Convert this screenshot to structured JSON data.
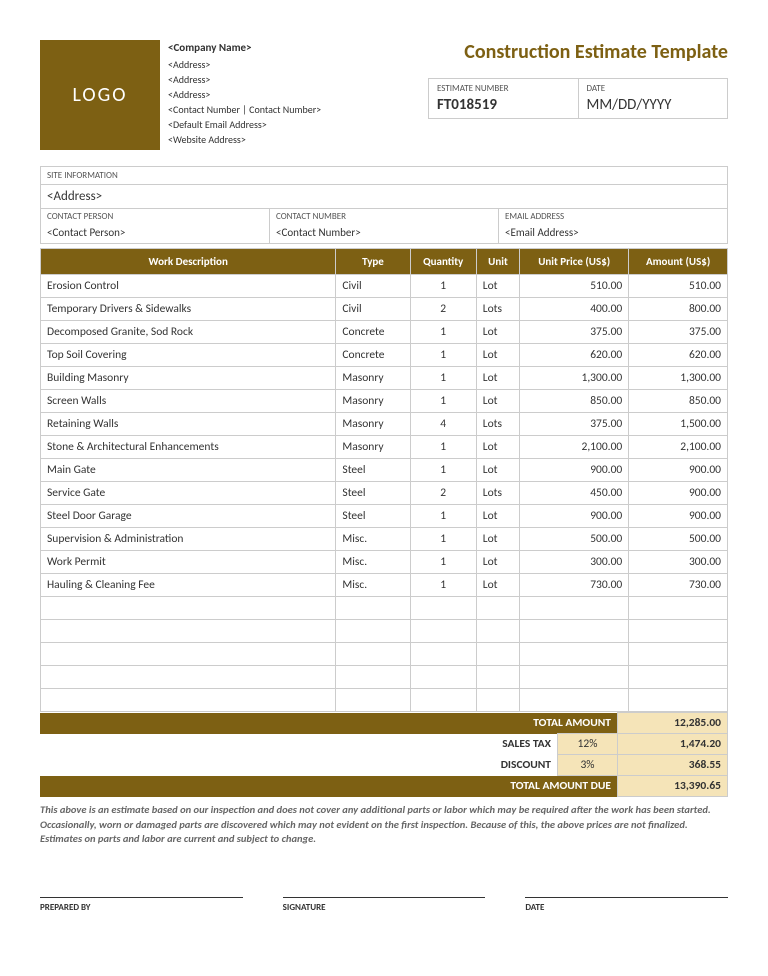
{
  "colors": {
    "brand": "#7d6013",
    "highlight": "#f5e4b8",
    "border": "#cccccc",
    "text": "#333333",
    "muted": "#666666"
  },
  "header": {
    "logo": "LOGO",
    "company_name": "<Company Name>",
    "address1": "<Address>",
    "address2": "<Address>",
    "address3": "<Address>",
    "contact": "<Contact Number | Contact Number>",
    "email": "<Default Email Address>",
    "website": "<Website Address>",
    "title": "Construction Estimate Template",
    "estimate_number_label": "ESTIMATE NUMBER",
    "estimate_number": "FT018519",
    "date_label": "DATE",
    "date": "MM/DD/YYYY"
  },
  "site": {
    "info_label": "SITE INFORMATION",
    "address": "<Address>",
    "contact_person_label": "CONTACT PERSON",
    "contact_person": "<Contact Person>",
    "contact_number_label": "CONTACT NUMBER",
    "contact_number": "<Contact Number>",
    "email_label": "EMAIL ADDRESS",
    "email": "<Email Address>"
  },
  "table": {
    "columns": [
      "Work Description",
      "Type",
      "Quantity",
      "Unit",
      "Unit Price (US$)",
      "Amount (US$)"
    ],
    "rows": [
      [
        "Erosion   Control",
        "Civil",
        "1",
        "Lot",
        "510.00",
        "510.00"
      ],
      [
        "Temporary Drivers & Sidewalks",
        "Civil",
        "2",
        "Lots",
        "400.00",
        "800.00"
      ],
      [
        "Decomposed Granite, Sod Rock",
        "Concrete",
        "1",
        "Lot",
        "375.00",
        "375.00"
      ],
      [
        "Top Soil Covering",
        "Concrete",
        "1",
        "Lot",
        "620.00",
        "620.00"
      ],
      [
        "Building Masonry",
        "Masonry",
        "1",
        "Lot",
        "1,300.00",
        "1,300.00"
      ],
      [
        "Screen Walls",
        "Masonry",
        "1",
        "Lot",
        "850.00",
        "850.00"
      ],
      [
        "Retaining Walls",
        "Masonry",
        "4",
        "Lots",
        "375.00",
        "1,500.00"
      ],
      [
        "Stone & Architectural Enhancements",
        "Masonry",
        "1",
        "Lot",
        "2,100.00",
        "2,100.00"
      ],
      [
        "Main Gate",
        "Steel",
        "1",
        "Lot",
        "900.00",
        "900.00"
      ],
      [
        "Service Gate",
        "Steel",
        "2",
        "Lots",
        "450.00",
        "900.00"
      ],
      [
        "Steel Door Garage",
        "Steel",
        "1",
        "Lot",
        "900.00",
        "900.00"
      ],
      [
        "Supervision & Administration",
        "Misc.",
        "1",
        "Lot",
        "500.00",
        "500.00"
      ],
      [
        "Work Permit",
        "Misc.",
        "1",
        "Lot",
        "300.00",
        "300.00"
      ],
      [
        "Hauling & Cleaning Fee",
        "Misc.",
        "1",
        "Lot",
        "730.00",
        "730.00"
      ]
    ],
    "empty_rows": 5
  },
  "totals": {
    "total_amount_label": "TOTAL AMOUNT",
    "total_amount": "12,285.00",
    "sales_tax_label": "SALES TAX",
    "sales_tax_pct": "12%",
    "sales_tax_amount": "1,474.20",
    "discount_label": "DISCOUNT",
    "discount_pct": "3%",
    "discount_amount": "368.55",
    "total_due_label": "TOTAL AMOUNT DUE",
    "total_due": "13,390.65"
  },
  "disclaimer": "This above is an estimate based on our inspection and does not cover any additional parts or labor which may be required after the work has been started. Occasionally, worn or damaged parts are discovered which may not evident on the first inspection. Because of this, the above prices are not finalized. Estimates on parts and labor are current and subject to change.",
  "signatures": {
    "prepared_by": "PREPARED BY",
    "signature": "SIGNATURE",
    "date": "DATE"
  }
}
